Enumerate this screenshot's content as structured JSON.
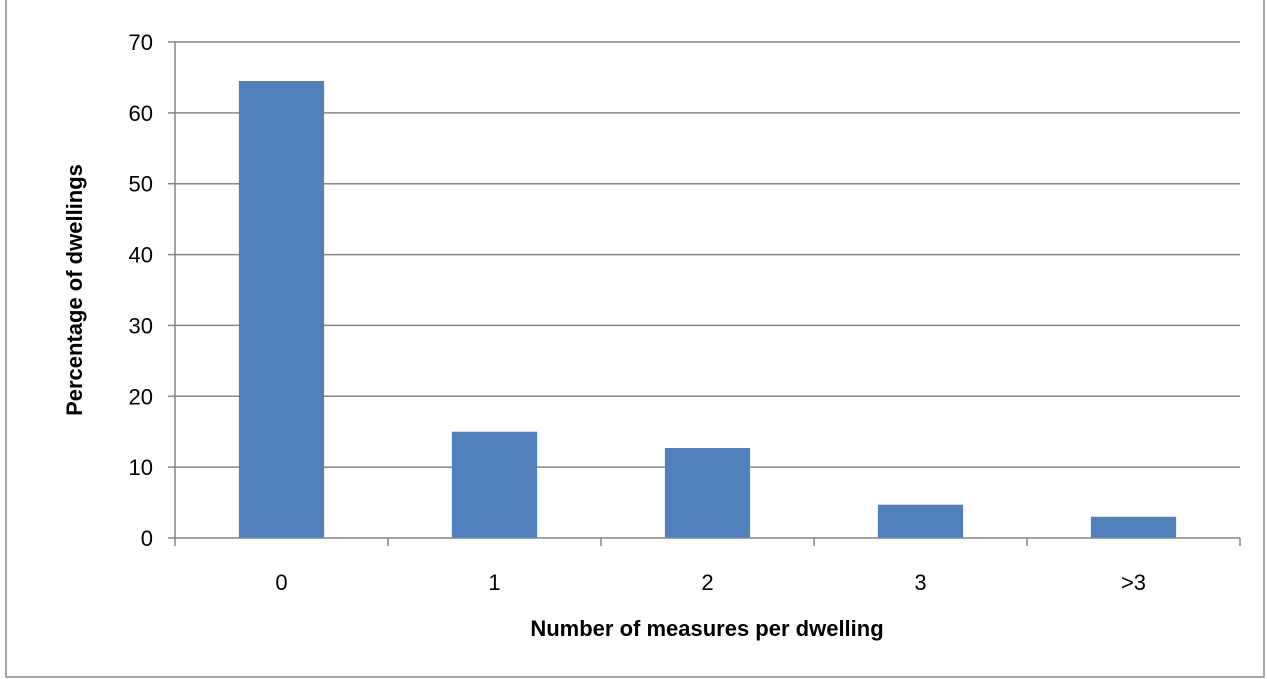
{
  "chart_data": {
    "type": "bar",
    "categories": [
      "0",
      "1",
      "2",
      "3",
      ">3"
    ],
    "values": [
      64.5,
      15,
      12.7,
      4.7,
      3
    ],
    "title": "",
    "xlabel": "Number of measures per dwelling",
    "ylabel": "Percentage of dwellings",
    "ylim": [
      0,
      70
    ],
    "yticks": [
      0,
      10,
      20,
      30,
      40,
      50,
      60,
      70
    ],
    "grid": true,
    "legend": "none",
    "bar_color": "#4f81bd",
    "grid_color": "#868686"
  }
}
